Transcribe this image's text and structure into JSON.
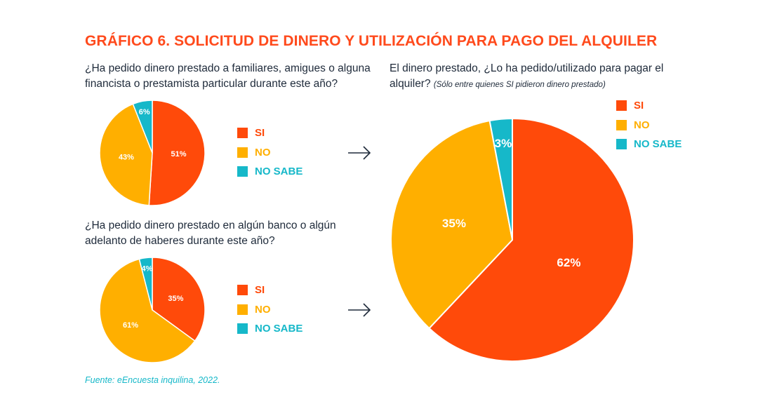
{
  "title": "GRÁFICO 6. SOLICITUD DE DINERO Y UTILIZACIÓN PARA PAGO DEL ALQUILER",
  "colors": {
    "si": "#ff4a0a",
    "no": "#ffaf00",
    "no_sabe": "#16b8c9",
    "title": "#ff4a1c",
    "text": "#1e2a3a"
  },
  "legend": [
    {
      "key": "si",
      "label": "SI"
    },
    {
      "key": "no",
      "label": "NO"
    },
    {
      "key": "no_sabe",
      "label": "NO SABE"
    }
  ],
  "questions": {
    "q1": "¿Ha pedido dinero prestado a familiares, amigues o alguna financista o prestamista particular durante este año?",
    "q2": "¿Ha pedido dinero prestado en algún banco o algún adelanto de haberes durante este año?",
    "q3": "El dinero prestado, ¿Lo ha pedido/utilizado para pagar el alquiler?",
    "q3_note": "(Sólo entre quienes SI pidieron dinero prestado)"
  },
  "source": "Fuente: eEncuesta inquilina, 2022.",
  "chart_data": [
    {
      "type": "pie",
      "title": "¿Ha pedido dinero prestado a familiares, amigues o alguna financista o prestamista particular durante este año?",
      "categories": [
        "SI",
        "NO",
        "NO SABE"
      ],
      "values": [
        51,
        43,
        6
      ],
      "labels": [
        "51%",
        "43%",
        "6%"
      ],
      "legend": "right"
    },
    {
      "type": "pie",
      "title": "¿Ha pedido dinero prestado en algún banco o algún adelanto de haberes durante este año?",
      "categories": [
        "SI",
        "NO",
        "NO SABE"
      ],
      "values": [
        35,
        61,
        4
      ],
      "labels": [
        "35%",
        "61%",
        "4%"
      ],
      "legend": "right"
    },
    {
      "type": "pie",
      "title": "El dinero prestado, ¿Lo ha pedido/utilizado para pagar el alquiler? (Sólo entre quienes SI pidieron dinero prestado)",
      "categories": [
        "SI",
        "NO",
        "NO SABE"
      ],
      "values": [
        62,
        35,
        3
      ],
      "labels": [
        "62%",
        "35%",
        "3%"
      ],
      "legend": "top-right"
    }
  ]
}
